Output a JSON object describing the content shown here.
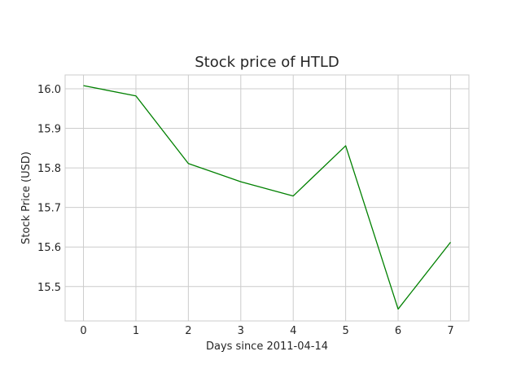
{
  "chart_data": {
    "type": "line",
    "title": "Stock price of HTLD",
    "xlabel": "Days since 2011-04-14",
    "ylabel": "Stock Price (USD)",
    "x": [
      0,
      1,
      2,
      3,
      4,
      5,
      6,
      7
    ],
    "series": [
      {
        "values": [
          16.008,
          15.982,
          15.811,
          15.765,
          15.729,
          15.856,
          15.443,
          15.612
        ],
        "color": "#008000"
      }
    ],
    "xlim": [
      -0.35,
      7.35
    ],
    "ylim": [
      15.413,
      16.035
    ],
    "xticks": [
      "0",
      "1",
      "2",
      "3",
      "4",
      "5",
      "6",
      "7"
    ],
    "yticks": [
      "15.5",
      "15.6",
      "15.7",
      "15.8",
      "15.9",
      "16.0"
    ],
    "grid": true,
    "style": {
      "grid_color": "#cccccc",
      "text_color": "#262626"
    }
  }
}
